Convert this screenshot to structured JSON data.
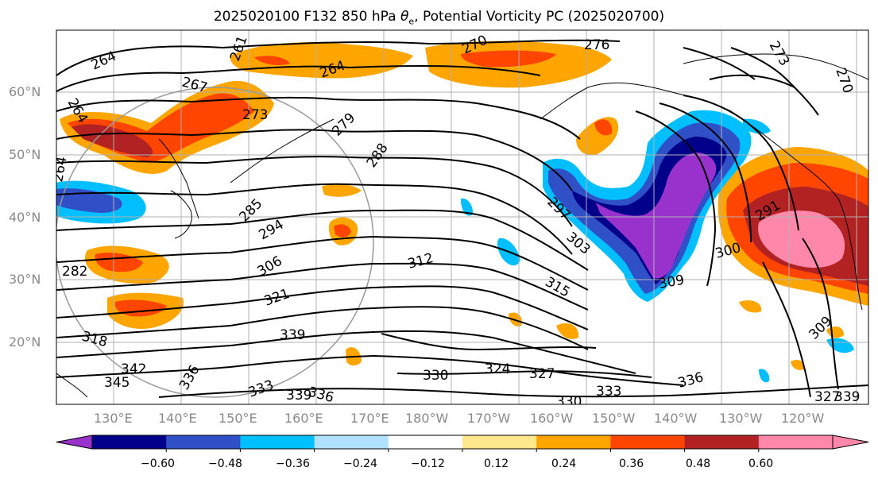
{
  "title_main": "2025020100 F132 850 hPa ",
  "title_theta": "θ",
  "title_sub": "e",
  "title_rest": ", Potential Vorticity PC (2025020700)",
  "lat_labels": [
    "60°N",
    "50°N",
    "40°N",
    "30°N",
    "20°N"
  ],
  "lon_labels": [
    "130°E",
    "140°E",
    "150°E",
    "160°E",
    "170°E",
    "180°W",
    "170°W",
    "160°W",
    "150°W",
    "140°W",
    "130°W",
    "120°W"
  ],
  "colorbar": {
    "colors": [
      "#9932cc",
      "#00008b",
      "#3050c8",
      "#00bfff",
      "#b0e2ff",
      "#ffffff",
      "#ffe88c",
      "#ffa500",
      "#ff4500",
      "#b22222",
      "#ff88aa",
      "#ff88aa"
    ],
    "tick_labels": [
      "−0.60",
      "−0.48",
      "−0.36",
      "−0.24",
      "−0.12",
      "0.12",
      "0.24",
      "0.36",
      "0.48",
      "0.60"
    ]
  },
  "contour_labels": [
    "264",
    "261",
    "264",
    "267",
    "264",
    "273",
    "270",
    "276",
    "279",
    "288",
    "264",
    "285",
    "294",
    "297",
    "303",
    "306",
    "312",
    "282",
    "321",
    "315",
    "309",
    "300",
    "291",
    "318",
    "339",
    "330",
    "324",
    "327",
    "342",
    "345",
    "336",
    "333",
    "339",
    "336",
    "330",
    "333",
    "336",
    "309",
    "327",
    "339",
    "270",
    "273"
  ]
}
